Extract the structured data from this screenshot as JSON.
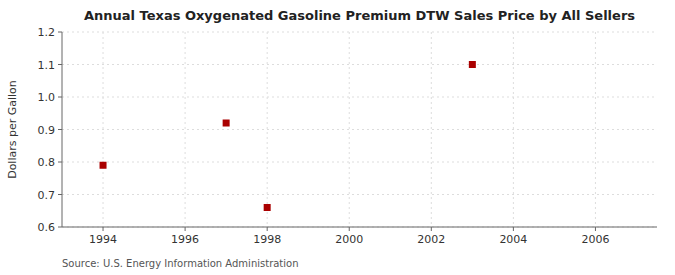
{
  "chart_data": {
    "type": "scatter",
    "title": "Annual Texas Oxygenated Gasoline Premium DTW Sales Price by All Sellers",
    "ylabel": "Dollars per Gallon",
    "annotations": [
      "Source: U.S. Energy Information Administration"
    ],
    "x": [
      1994,
      1997,
      1998,
      2003
    ],
    "values": [
      0.79,
      0.92,
      0.66,
      1.1
    ],
    "color": "#aa0000",
    "marker": "square",
    "xlim": [
      1993.0,
      2007.5
    ],
    "ylim": [
      0.6,
      1.2
    ],
    "xticks": [
      1994,
      1996,
      1998,
      2000,
      2002,
      2004,
      2006
    ],
    "yticks": [
      0.6,
      0.7,
      0.8,
      0.9,
      {
        "value": 1.0,
        "label": "1.0"
      },
      1.1,
      1.2
    ],
    "grid": true
  }
}
